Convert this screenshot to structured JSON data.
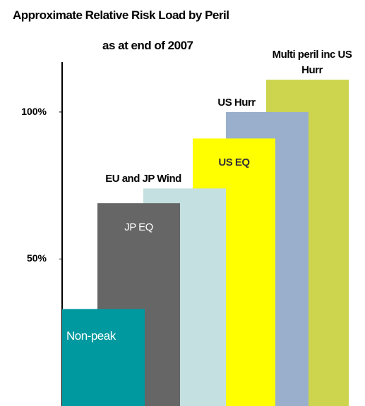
{
  "chart_data": {
    "type": "bar",
    "title": "Approximate Relative Risk Load by Peril",
    "subtitle": "as at end of 2007",
    "categories": [
      "Non-peak",
      "JP EQ",
      "EU and JP Wind",
      "US EQ",
      "US Hurr",
      "Multi peril inc US Hurr"
    ],
    "values": [
      33,
      69,
      74,
      91,
      100,
      111
    ],
    "colors": [
      "#00999f",
      "#666666",
      "#c4e0e0",
      "#ffff00",
      "#9aafcb",
      "#cdd54e"
    ],
    "label_placement": [
      "inside",
      "inside",
      "above",
      "inside",
      "above",
      "above"
    ],
    "label_colors": [
      "#ffffff",
      "#ffffff",
      "#000000",
      "#333333",
      "#000000",
      "#000000"
    ],
    "ylim": [
      0,
      117
    ],
    "yticks": [
      {
        "value": 50,
        "label": "50%"
      },
      {
        "value": 100,
        "label": "100%"
      }
    ]
  }
}
